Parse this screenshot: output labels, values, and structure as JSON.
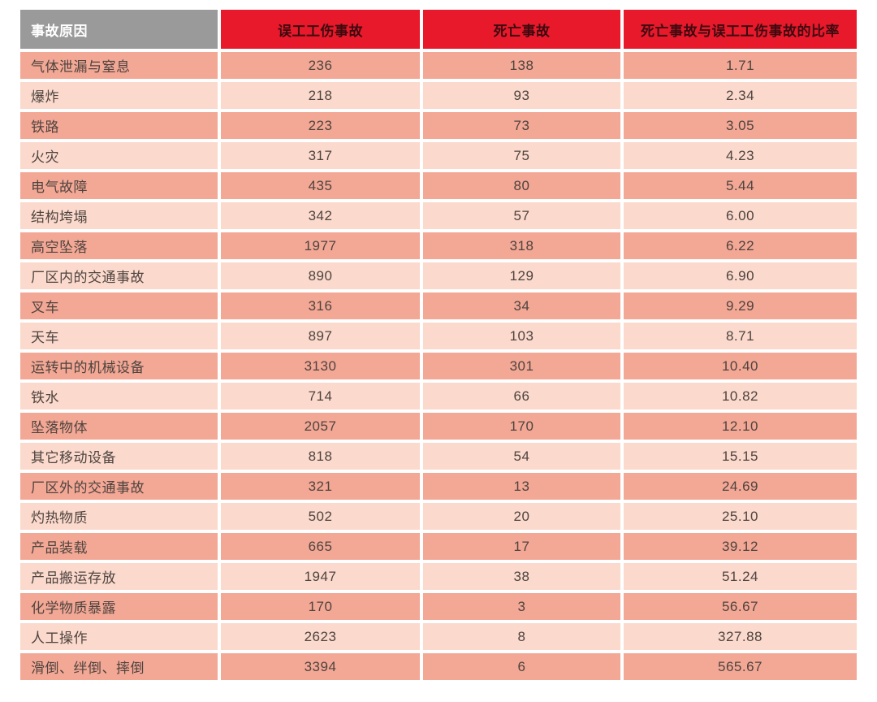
{
  "colors": {
    "header_gray_bg": "#9a9a9a",
    "header_red_bg": "#e8192b",
    "header_text_on_gray": "#ffffff",
    "header_text_on_red": "#3d0a10",
    "row_dark_bg": "#f3a795",
    "row_light_bg": "#fbd9cd",
    "body_text": "#4e443f",
    "page_bg": "#ffffff"
  },
  "chart_data": {
    "type": "table",
    "columns": [
      "事故原因",
      "误工工伤事故",
      "死亡事故",
      "死亡事故与误工工伤事故的比率"
    ],
    "rows": [
      [
        "气体泄漏与窒息",
        "236",
        "138",
        "1.71"
      ],
      [
        "爆炸",
        "218",
        "93",
        "2.34"
      ],
      [
        "铁路",
        "223",
        "73",
        "3.05"
      ],
      [
        "火灾",
        "317",
        "75",
        "4.23"
      ],
      [
        "电气故障",
        "435",
        "80",
        "5.44"
      ],
      [
        "结构垮塌",
        "342",
        "57",
        "6.00"
      ],
      [
        "高空坠落",
        "1977",
        "318",
        "6.22"
      ],
      [
        "厂区内的交通事故",
        "890",
        "129",
        "6.90"
      ],
      [
        "叉车",
        "316",
        "34",
        "9.29"
      ],
      [
        "天车",
        "897",
        "103",
        "8.71"
      ],
      [
        "运转中的机械设备",
        "3130",
        "301",
        "10.40"
      ],
      [
        "铁水",
        "714",
        "66",
        "10.82"
      ],
      [
        "坠落物体",
        "2057",
        "170",
        "12.10"
      ],
      [
        "其它移动设备",
        "818",
        "54",
        "15.15"
      ],
      [
        "厂区外的交通事故",
        "321",
        "13",
        "24.69"
      ],
      [
        "灼热物质",
        "502",
        "20",
        "25.10"
      ],
      [
        "产品装载",
        "665",
        "17",
        "39.12"
      ],
      [
        "产品搬运存放",
        "1947",
        "38",
        "51.24"
      ],
      [
        "化学物质暴露",
        "170",
        "3",
        "56.67"
      ],
      [
        "人工操作",
        "2623",
        "8",
        "327.88"
      ],
      [
        "滑倒、绊倒、摔倒",
        "3394",
        "6",
        "565.67"
      ]
    ]
  }
}
